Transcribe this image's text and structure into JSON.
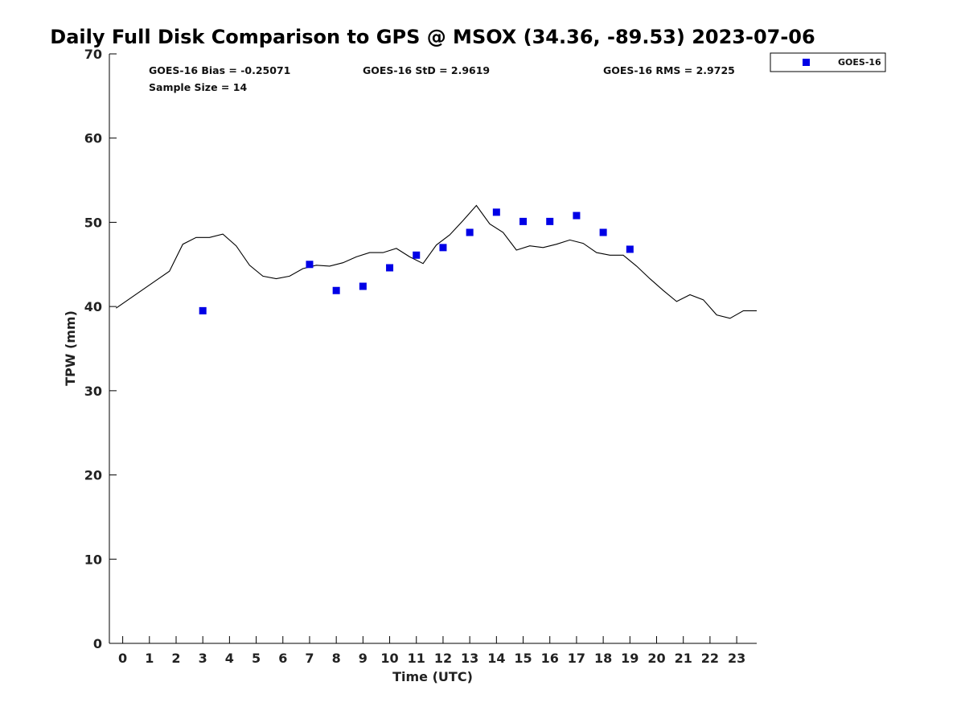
{
  "chart_data": {
    "type": "scatter",
    "title": "Daily Full Disk Comparison to GPS @ MSOX (34.36, -89.53) 2023-07-06",
    "xlabel": "Time (UTC)",
    "ylabel": "TPW (mm)",
    "xlim": [
      -0.5,
      23.75
    ],
    "ylim": [
      0,
      70
    ],
    "x_ticks": [
      0,
      1,
      2,
      3,
      4,
      5,
      6,
      7,
      8,
      9,
      10,
      11,
      12,
      13,
      14,
      15,
      16,
      17,
      18,
      19,
      20,
      21,
      22,
      23
    ],
    "x_tick_labels": [
      "0",
      "1",
      "2",
      "3",
      "4",
      "5",
      "6",
      "7",
      "8",
      "9",
      "10",
      "11",
      "12",
      "13",
      "14",
      "15",
      "16",
      "17",
      "18",
      "19",
      "20",
      "21",
      "22",
      "23"
    ],
    "y_ticks": [
      0,
      10,
      20,
      30,
      40,
      50,
      60,
      70
    ],
    "y_tick_labels": [
      "0",
      "10",
      "20",
      "30",
      "40",
      "50",
      "60",
      "70"
    ],
    "grid": false,
    "legend_position": "top-right",
    "stats": {
      "bias": "GOES-16 Bias = -0.25071",
      "std": "GOES-16 StD = 2.9619",
      "rms": "GOES-16 RMS = 2.9725",
      "sample": "Sample Size = 14"
    },
    "series": [
      {
        "name": "GOES-16",
        "kind": "scatter",
        "marker": "square",
        "color": "#0000e6",
        "x": [
          3,
          7,
          8,
          9,
          10,
          11,
          12,
          13,
          14,
          15,
          16,
          17,
          18,
          19
        ],
        "y": [
          39.5,
          45.0,
          41.9,
          42.4,
          44.6,
          46.1,
          47.0,
          48.8,
          51.2,
          50.1,
          50.1,
          50.8,
          48.8,
          46.8
        ]
      },
      {
        "kind": "line",
        "color": "#000000",
        "x": [
          -0.25,
          0.25,
          0.75,
          1.25,
          1.75,
          2.25,
          2.75,
          3.25,
          3.75,
          4.25,
          4.75,
          5.25,
          5.75,
          6.25,
          6.75,
          7.25,
          7.75,
          8.25,
          8.75,
          9.25,
          9.75,
          10.25,
          10.75,
          11.25,
          11.75,
          12.25,
          12.75,
          13.25,
          13.75,
          14.25,
          14.75,
          15.25,
          15.75,
          16.25,
          16.75,
          17.25,
          17.75,
          18.25,
          18.75,
          19.25,
          19.75,
          20.25,
          20.75,
          21.25,
          21.75,
          22.25,
          22.75,
          23.25,
          23.75
        ],
        "y": [
          39.8,
          40.9,
          42.0,
          43.1,
          44.2,
          47.4,
          48.2,
          48.2,
          48.6,
          47.2,
          44.9,
          43.6,
          43.3,
          43.6,
          44.5,
          44.9,
          44.8,
          45.2,
          45.9,
          46.4,
          46.4,
          46.9,
          45.9,
          45.1,
          47.3,
          48.5,
          50.2,
          52.0,
          49.8,
          48.8,
          46.7,
          47.2,
          47.0,
          47.4,
          47.9,
          47.5,
          46.4,
          46.1,
          46.1,
          44.8,
          43.3,
          41.9,
          40.6,
          41.4,
          40.8,
          39.0,
          38.6,
          39.5,
          39.5
        ]
      }
    ]
  }
}
